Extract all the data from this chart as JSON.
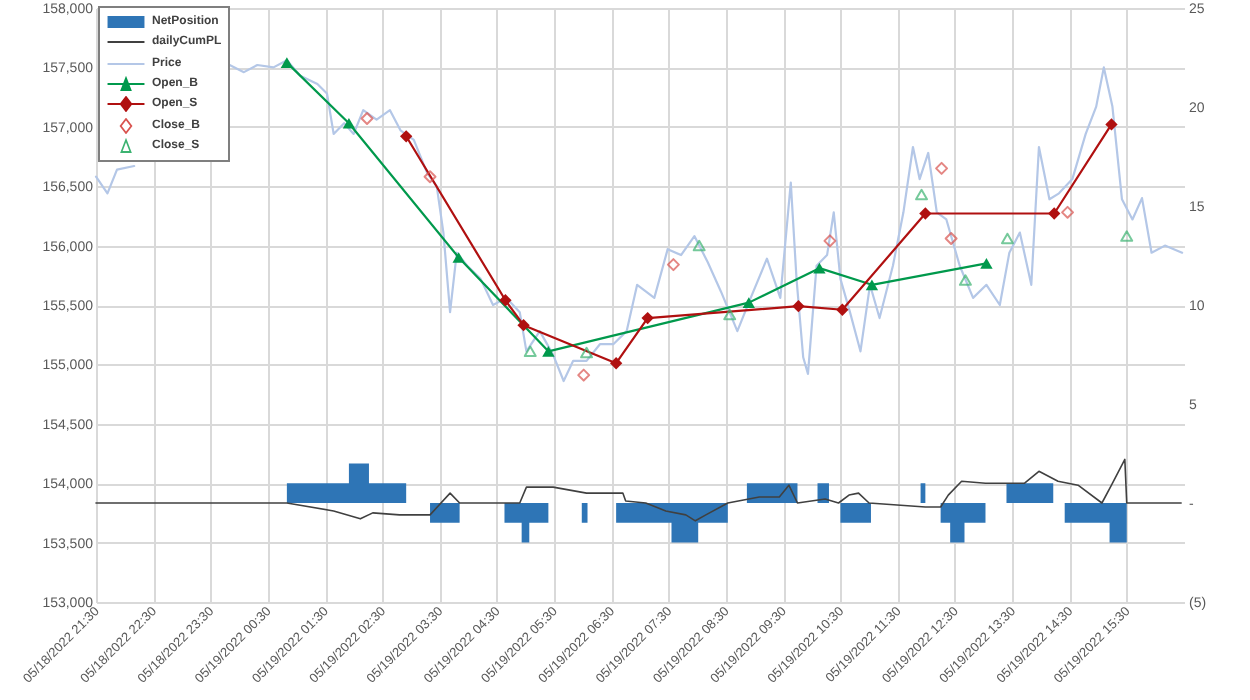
{
  "chart_data": {
    "type": "line",
    "xlim": [
      "2022-05-18T21:30",
      "2022-05-19T16:30"
    ],
    "xticks": [
      {
        "value": "2022-05-18T21:30",
        "label": "05/18/2022 21:30"
      },
      {
        "value": "2022-05-18T22:30",
        "label": "05/18/2022 22:30"
      },
      {
        "value": "2022-05-18T23:30",
        "label": "05/18/2022 23:30"
      },
      {
        "value": "2022-05-19T00:30",
        "label": "05/19/2022 00:30"
      },
      {
        "value": "2022-05-19T01:30",
        "label": "05/19/2022 01:30"
      },
      {
        "value": "2022-05-19T02:30",
        "label": "05/19/2022 02:30"
      },
      {
        "value": "2022-05-19T03:30",
        "label": "05/19/2022 03:30"
      },
      {
        "value": "2022-05-19T04:30",
        "label": "05/19/2022 04:30"
      },
      {
        "value": "2022-05-19T05:30",
        "label": "05/19/2022 05:30"
      },
      {
        "value": "2022-05-19T06:30",
        "label": "05/19/2022 06:30"
      },
      {
        "value": "2022-05-19T07:30",
        "label": "05/19/2022 07:30"
      },
      {
        "value": "2022-05-19T08:30",
        "label": "05/19/2022 08:30"
      },
      {
        "value": "2022-05-19T09:30",
        "label": "05/19/2022 09:30"
      },
      {
        "value": "2022-05-19T10:30",
        "label": "05/19/2022 10:30"
      },
      {
        "value": "2022-05-19T11:30",
        "label": "05/19/2022 11:30"
      },
      {
        "value": "2022-05-19T12:30",
        "label": "05/19/2022 12:30"
      },
      {
        "value": "2022-05-19T13:30",
        "label": "05/19/2022 13:30"
      },
      {
        "value": "2022-05-19T14:30",
        "label": "05/19/2022 14:30"
      },
      {
        "value": "2022-05-19T15:30",
        "label": "05/19/2022 15:30"
      }
    ],
    "ylim": [
      153000,
      158000
    ],
    "yticks": [
      {
        "value": 153000,
        "label": "153,000"
      },
      {
        "value": 153500,
        "label": "153,500"
      },
      {
        "value": 154000,
        "label": "154,000"
      },
      {
        "value": 154500,
        "label": "154,500"
      },
      {
        "value": 155000,
        "label": "155,000"
      },
      {
        "value": 155500,
        "label": "155,500"
      },
      {
        "value": 156000,
        "label": "156,000"
      },
      {
        "value": 156500,
        "label": "156,500"
      },
      {
        "value": 157000,
        "label": "157,000"
      },
      {
        "value": 157500,
        "label": "157,500"
      },
      {
        "value": 158000,
        "label": "158,000"
      }
    ],
    "y2lim": [
      -5,
      25
    ],
    "y2ticks": [
      {
        "value": -5,
        "label": "(5)"
      },
      {
        "value": 0,
        "label": "-"
      },
      5,
      10,
      15,
      20,
      25
    ],
    "grid": true,
    "legend": "top left",
    "series": [
      {
        "name": "NetPosition",
        "type": "area",
        "axis": "y2",
        "color": "#2e75b6",
        "x": [
          "2022-05-19T00:50",
          "2022-05-19T01:55",
          "2022-05-19T02:16",
          "2022-05-19T02:55",
          "2022-05-19T03:20",
          "2022-05-19T03:51",
          "2022-05-19T04:38",
          "2022-05-19T04:56",
          "2022-05-19T05:04",
          "2022-05-19T05:24",
          "2022-05-19T05:59",
          "2022-05-19T06:05",
          "2022-05-19T06:35",
          "2022-05-19T07:33",
          "2022-05-19T08:01",
          "2022-05-19T08:32",
          "2022-05-19T08:52",
          "2022-05-19T09:45",
          "2022-05-19T10:06",
          "2022-05-19T10:18",
          "2022-05-19T10:30",
          "2022-05-19T11:02",
          "2022-05-19T11:54",
          "2022-05-19T11:59",
          "2022-05-19T12:15",
          "2022-05-19T12:25",
          "2022-05-19T12:40",
          "2022-05-19T13:02",
          "2022-05-19T13:24",
          "2022-05-19T14:13",
          "2022-05-19T14:25",
          "2022-05-19T15:12",
          "2022-05-19T15:30"
        ],
        "values": [
          1,
          2,
          1,
          0,
          -1,
          0,
          -1,
          -2,
          -1,
          0,
          -1,
          0,
          -1,
          -2,
          -1,
          0,
          1,
          0,
          1,
          0,
          -1,
          0,
          1,
          0,
          -1,
          -2,
          -1,
          0,
          1,
          0,
          -1,
          -2,
          0
        ]
      },
      {
        "name": "dailyCumPL",
        "type": "line",
        "axis": "y2",
        "color": "#404040",
        "x": [
          "2022-05-18T21:30",
          "2022-05-19T00:50",
          "2022-05-19T01:39",
          "2022-05-19T02:07",
          "2022-05-19T02:20",
          "2022-05-19T02:48",
          "2022-05-19T03:20",
          "2022-05-19T03:41",
          "2022-05-19T03:51",
          "2022-05-19T04:54",
          "2022-05-19T05:01",
          "2022-05-19T05:29",
          "2022-05-19T06:04",
          "2022-05-19T06:42",
          "2022-05-19T06:45",
          "2022-05-19T07:06",
          "2022-05-19T07:27",
          "2022-05-19T07:48",
          "2022-05-19T07:58",
          "2022-05-19T08:09",
          "2022-05-19T08:32",
          "2022-05-19T09:05",
          "2022-05-19T09:26",
          "2022-05-19T09:36",
          "2022-05-19T09:45",
          "2022-05-19T10:14",
          "2022-05-19T10:28",
          "2022-05-19T10:39",
          "2022-05-19T10:49",
          "2022-05-19T11:00",
          "2022-05-19T11:59",
          "2022-05-19T12:15",
          "2022-05-19T12:23",
          "2022-05-19T12:37",
          "2022-05-19T13:02",
          "2022-05-19T13:43",
          "2022-05-19T13:58",
          "2022-05-19T14:18",
          "2022-05-19T14:39",
          "2022-05-19T15:04",
          "2022-05-19T15:14",
          "2022-05-19T15:28",
          "2022-05-19T15:30",
          "2022-05-19T16:27"
        ],
        "values": [
          0,
          0,
          -0.4,
          -0.8,
          -0.5,
          -0.6,
          -0.6,
          0.5,
          0,
          0,
          0.8,
          0.8,
          0.5,
          0.5,
          0.1,
          0,
          -0.4,
          -0.6,
          -0.9,
          -0.6,
          0,
          0.3,
          0.3,
          0.9,
          0,
          0.2,
          0,
          0.4,
          0.5,
          0,
          -0.2,
          -0.2,
          0.4,
          1.1,
          1,
          1,
          1.6,
          1.1,
          0.9,
          0,
          0.9,
          2.2,
          0,
          0
        ]
      },
      {
        "name": "Price",
        "color": "#b4c7e7",
        "x": [
          "2022-05-18T21:30",
          "2022-05-18T21:42",
          "2022-05-18T21:52",
          "2022-05-18T22:10",
          "2022-05-18T23:00",
          "2022-05-18T23:50",
          "2022-05-19T00:05",
          "2022-05-19T00:19",
          "2022-05-19T00:36",
          "2022-05-19T00:50",
          "2022-05-19T01:04",
          "2022-05-19T01:22",
          "2022-05-19T01:32",
          "2022-05-19T01:39",
          "2022-05-19T01:50",
          "2022-05-19T02:00",
          "2022-05-19T02:10",
          "2022-05-19T02:24",
          "2022-05-19T02:38",
          "2022-05-19T02:49",
          "2022-05-19T03:03",
          "2022-05-19T03:17",
          "2022-05-19T03:27",
          "2022-05-19T03:34",
          "2022-05-19T03:41",
          "2022-05-19T03:48",
          "2022-05-19T03:59",
          "2022-05-19T04:13",
          "2022-05-19T04:26",
          "2022-05-19T04:40",
          "2022-05-19T04:54",
          "2022-05-19T05:01",
          "2022-05-19T05:15",
          "2022-05-19T05:29",
          "2022-05-19T05:40",
          "2022-05-19T05:50",
          "2022-05-19T06:04",
          "2022-05-19T06:18",
          "2022-05-19T06:32",
          "2022-05-19T06:46",
          "2022-05-19T06:57",
          "2022-05-19T07:15",
          "2022-05-19T07:29",
          "2022-05-19T07:43",
          "2022-05-19T07:57",
          "2022-05-19T08:11",
          "2022-05-19T08:25",
          "2022-05-19T08:42",
          "2022-05-19T08:56",
          "2022-05-19T09:13",
          "2022-05-19T09:27",
          "2022-05-19T09:38",
          "2022-05-19T09:44",
          "2022-05-19T09:51",
          "2022-05-19T09:56",
          "2022-05-19T10:05",
          "2022-05-19T10:16",
          "2022-05-19T10:23",
          "2022-05-19T10:30",
          "2022-05-19T10:40",
          "2022-05-19T10:51",
          "2022-05-19T11:01",
          "2022-05-19T11:11",
          "2022-05-19T11:25",
          "2022-05-19T11:36",
          "2022-05-19T11:46",
          "2022-05-19T11:53",
          "2022-05-19T12:02",
          "2022-05-19T12:11",
          "2022-05-19T12:21",
          "2022-05-19T12:35",
          "2022-05-19T12:49",
          "2022-05-19T13:03",
          "2022-05-19T13:17",
          "2022-05-19T13:27",
          "2022-05-19T13:38",
          "2022-05-19T13:50",
          "2022-05-19T13:58",
          "2022-05-19T14:09",
          "2022-05-19T14:19",
          "2022-05-19T14:33",
          "2022-05-19T14:47",
          "2022-05-19T14:58",
          "2022-05-19T15:06",
          "2022-05-19T15:15",
          "2022-05-19T15:25",
          "2022-05-19T15:36",
          "2022-05-19T15:46",
          "2022-05-19T15:56",
          "2022-05-19T16:10",
          "2022-05-19T16:28"
        ],
        "values": [
          156580,
          156440,
          156640,
          156670,
          null,
          157520,
          157460,
          157520,
          157500,
          157560,
          157430,
          157360,
          157280,
          156940,
          157030,
          156940,
          157140,
          157060,
          157140,
          156970,
          156890,
          156610,
          156500,
          156110,
          155440,
          155940,
          155830,
          155720,
          155500,
          155560,
          155440,
          155110,
          155280,
          155080,
          154860,
          155030,
          155030,
          155170,
          155170,
          155280,
          155670,
          155560,
          155970,
          155920,
          156080,
          155860,
          155610,
          155280,
          155560,
          155890,
          155560,
          156530,
          155720,
          155060,
          154920,
          155830,
          155920,
          156280,
          155720,
          155440,
          155110,
          155670,
          155390,
          155830,
          156280,
          156830,
          156560,
          156780,
          156280,
          156220,
          155830,
          155560,
          155670,
          155500,
          155940,
          156110,
          155670,
          156830,
          156390,
          156440,
          156560,
          156940,
          157170,
          157500,
          157170,
          156390,
          156220,
          156400,
          155940,
          156000,
          155940
        ]
      },
      {
        "name": "Open_B",
        "marker": "triangle",
        "color": "#00994c",
        "x": [
          "2022-05-19T00:50",
          "2022-05-19T01:55",
          "2022-05-19T03:50",
          "2022-05-19T05:24",
          "2022-05-19T08:54",
          "2022-05-19T10:08",
          "2022-05-19T11:03",
          "2022-05-19T13:03"
        ],
        "values": [
          157540,
          157030,
          155900,
          155110,
          155520,
          155810,
          155670,
          155850
        ]
      },
      {
        "name": "Open_S",
        "marker": "diamond",
        "color": "#b01010",
        "x": [
          "2022-05-19T02:55",
          "2022-05-19T04:39",
          "2022-05-19T04:58",
          "2022-05-19T06:35",
          "2022-05-19T07:08",
          "2022-05-19T09:46",
          "2022-05-19T10:32",
          "2022-05-19T11:59",
          "2022-05-19T14:14",
          "2022-05-19T15:14"
        ],
        "values": [
          156920,
          155540,
          155330,
          155010,
          155390,
          155490,
          155460,
          156270,
          156270,
          157020
        ]
      },
      {
        "name": "Close_B",
        "type": "scatter",
        "marker": "diamond",
        "color": "#d9534f",
        "x": [
          "2022-05-19T02:14",
          "2022-05-19T03:20",
          "2022-05-19T06:01",
          "2022-05-19T07:35",
          "2022-05-19T10:19",
          "2022-05-19T12:16",
          "2022-05-19T12:26",
          "2022-05-19T14:28"
        ],
        "values": [
          157070,
          156580,
          154910,
          155840,
          156040,
          156650,
          156060,
          156280
        ]
      },
      {
        "name": "Close_S",
        "type": "scatter",
        "marker": "triangle",
        "color": "#3cb371",
        "x": [
          "2022-05-19T05:05",
          "2022-05-19T06:04",
          "2022-05-19T08:02",
          "2022-05-19T08:34",
          "2022-05-19T11:55",
          "2022-05-19T12:41",
          "2022-05-19T13:25",
          "2022-05-19T15:30"
        ],
        "values": [
          155110,
          155100,
          156000,
          155420,
          156430,
          155710,
          156060,
          156080
        ]
      }
    ]
  }
}
